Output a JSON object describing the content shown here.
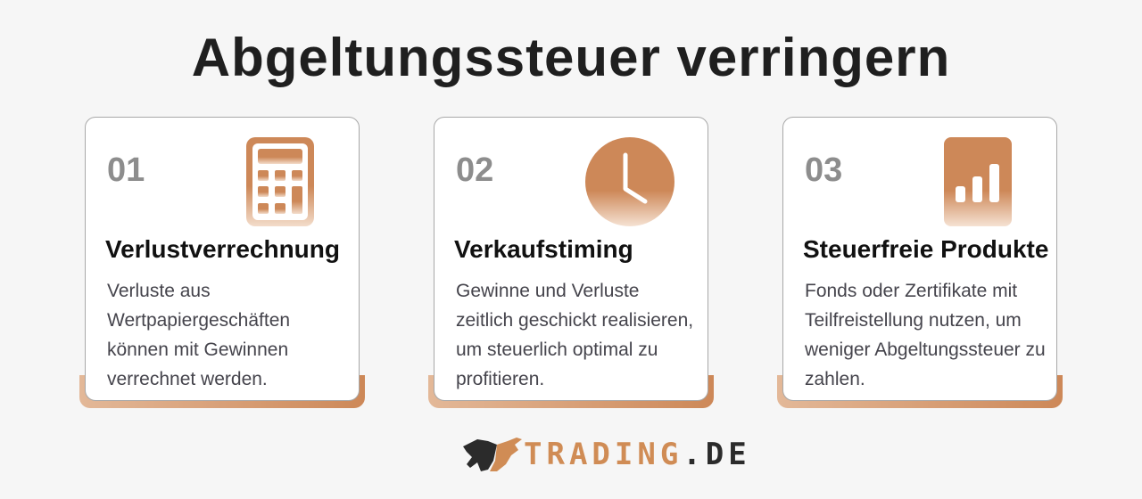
{
  "title": "Abgeltungssteuer verringern",
  "cards": [
    {
      "number": "01",
      "icon": "calculator-icon",
      "title": "Verlustverrechnung",
      "description": "Verluste aus Wertpapiergeschäften können mit Gewinnen verrechnet werden."
    },
    {
      "number": "02",
      "icon": "clock-icon",
      "title": "Verkaufstiming",
      "description": "Gewinne und Verluste zeitlich geschickt realisieren, um steuerlich optimal zu profitieren."
    },
    {
      "number": "03",
      "icon": "bar-chart-icon",
      "title": "Steuerfreie Produkte",
      "description": "Fonds oder Zertifikate mit Teilfreistellung nutzen, um weniger Abgeltungssteuer zu zahlen."
    }
  ],
  "logo": {
    "text_a": "TRADING",
    "text_b": ".DE"
  },
  "colors": {
    "accent": "#cd8858",
    "text": "#1f1f1f",
    "number": "#8d8d8d"
  }
}
